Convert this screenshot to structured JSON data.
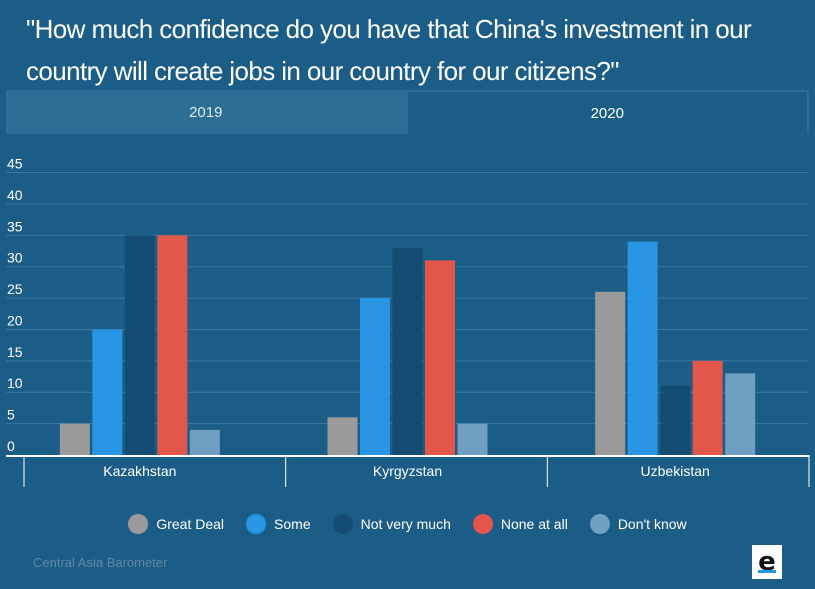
{
  "title": "\"How much confidence do you have that China's investment in our country will create jobs in our country for our citizens?\"",
  "tabs": [
    {
      "label": "2019",
      "active": false
    },
    {
      "label": "2020",
      "active": true
    }
  ],
  "source": "Central Asia Barometer",
  "chart_data": {
    "type": "bar",
    "title": "",
    "categories": [
      "Kazakhstan",
      "Kyrgyzstan",
      "Uzbekistan"
    ],
    "series": [
      {
        "name": "Great Deal",
        "color": "#9a9a9a",
        "values": [
          5,
          6,
          26
        ]
      },
      {
        "name": "Some",
        "color": "#2896e4",
        "values": [
          20,
          25,
          34
        ]
      },
      {
        "name": "Not very much",
        "color": "#134d73",
        "values": [
          35,
          33,
          11
        ]
      },
      {
        "name": "None at all",
        "color": "#e2574a",
        "values": [
          35,
          31,
          15
        ]
      },
      {
        "name": "Don't know",
        "color": "#6f9fc2",
        "values": [
          4,
          5,
          13
        ]
      }
    ],
    "yticks": [
      0,
      5,
      10,
      15,
      20,
      25,
      30,
      35,
      40,
      45
    ],
    "ylim": [
      0,
      47
    ],
    "grid": true,
    "legend": "bottom-center"
  }
}
